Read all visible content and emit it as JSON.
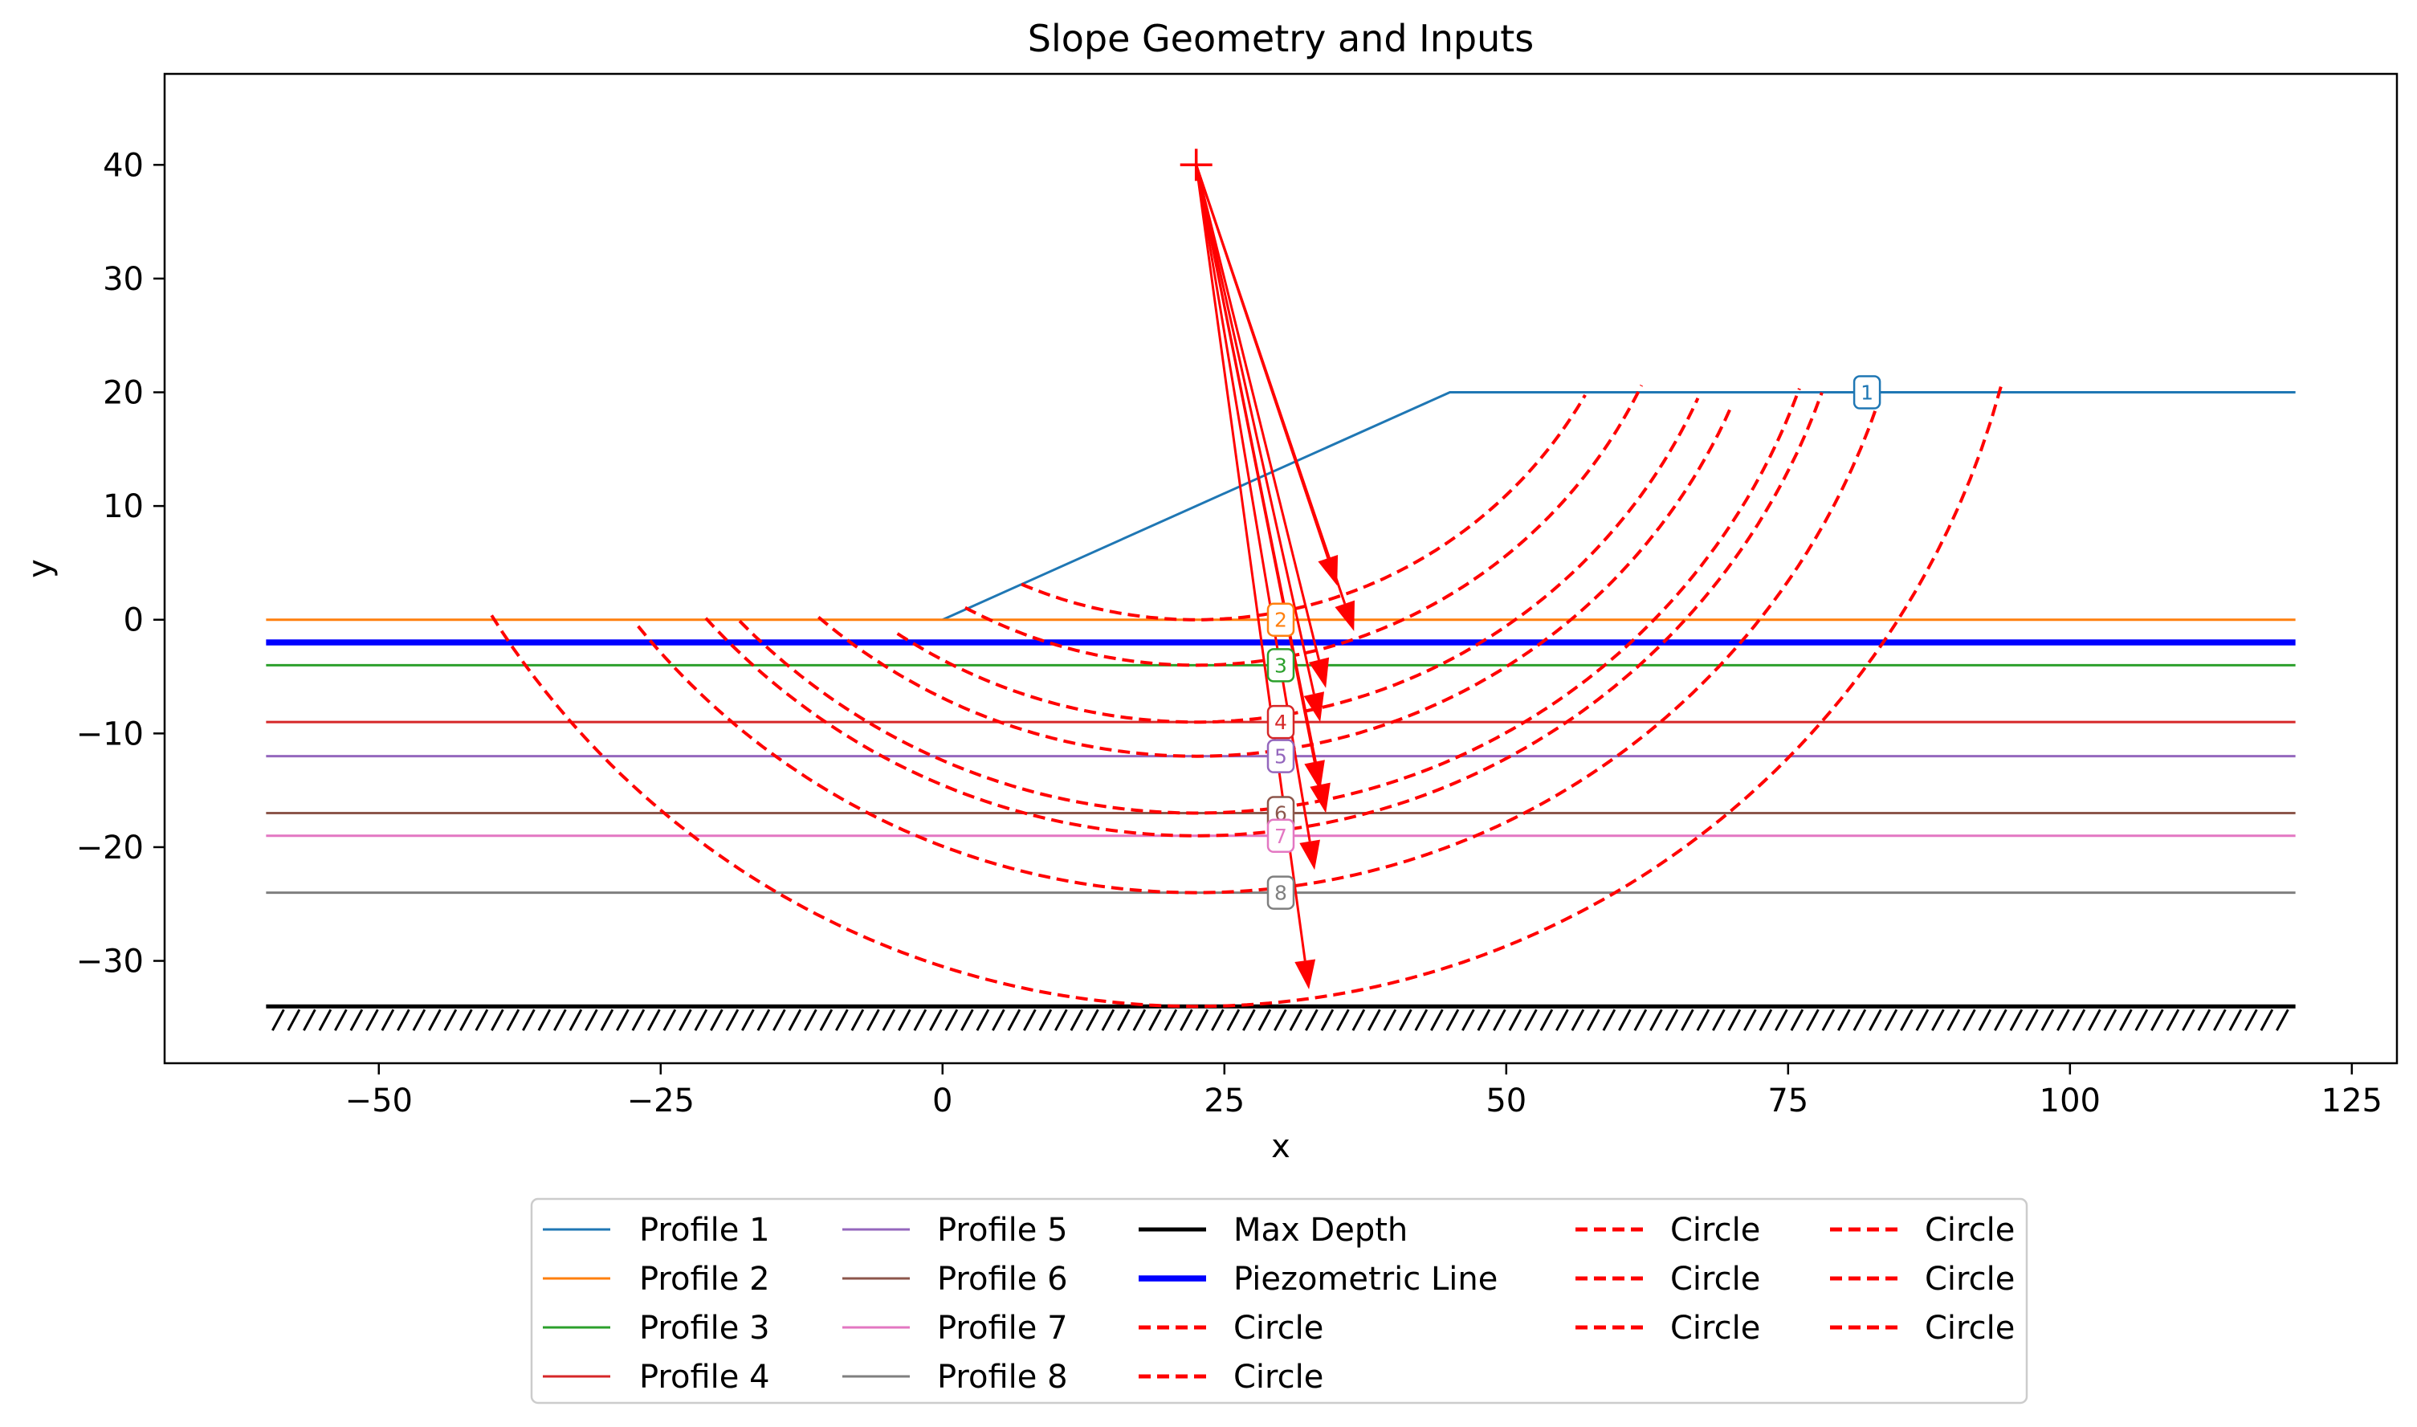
{
  "chart_data": {
    "type": "line",
    "title": "Slope Geometry and Inputs",
    "xlabel": "x",
    "ylabel": "y",
    "xlim": [
      -69,
      129
    ],
    "ylim": [
      -39,
      48
    ],
    "xticks": [
      -50,
      -25,
      0,
      25,
      50,
      75,
      100,
      125
    ],
    "yticks": [
      -30,
      -20,
      -10,
      0,
      10,
      20,
      30,
      40
    ],
    "tick_labels_x": [
      "−50",
      "−25",
      "0",
      "25",
      "50",
      "75",
      "100",
      "125"
    ],
    "tick_labels_y": [
      "−30",
      "−20",
      "−10",
      "0",
      "10",
      "20",
      "30",
      "40"
    ],
    "grid": false,
    "legend_placement": "below plot, 5 columns",
    "profiles": [
      {
        "name": "Profile 1",
        "color": "#1f77b4",
        "label_marker": "1",
        "marker_x": 82,
        "points": [
          [
            0,
            0
          ],
          [
            45,
            20
          ],
          [
            120,
            20
          ]
        ]
      },
      {
        "name": "Profile 2",
        "color": "#ff7f0e",
        "label_marker": "2",
        "marker_x": 30,
        "points": [
          [
            -60,
            0
          ],
          [
            120,
            0
          ]
        ]
      },
      {
        "name": "Profile 3",
        "color": "#2ca02c",
        "label_marker": "3",
        "marker_x": 30,
        "points": [
          [
            -60,
            -4
          ],
          [
            120,
            -4
          ]
        ]
      },
      {
        "name": "Profile 4",
        "color": "#d62728",
        "label_marker": "4",
        "marker_x": 30,
        "points": [
          [
            -60,
            -9
          ],
          [
            120,
            -9
          ]
        ]
      },
      {
        "name": "Profile 5",
        "color": "#9467bd",
        "label_marker": "5",
        "marker_x": 30,
        "points": [
          [
            -60,
            -12
          ],
          [
            120,
            -12
          ]
        ]
      },
      {
        "name": "Profile 6",
        "color": "#8c564b",
        "label_marker": "6",
        "marker_x": 30,
        "points": [
          [
            -60,
            -17
          ],
          [
            120,
            -17
          ]
        ]
      },
      {
        "name": "Profile 7",
        "color": "#e377c2",
        "label_marker": "7",
        "marker_x": 30,
        "points": [
          [
            -60,
            -19
          ],
          [
            120,
            -19
          ]
        ]
      },
      {
        "name": "Profile 8",
        "color": "#7f7f7f",
        "label_marker": "8",
        "marker_x": 30,
        "points": [
          [
            -60,
            -24
          ],
          [
            120,
            -24
          ]
        ]
      }
    ],
    "max_depth": {
      "name": "Max Depth",
      "color": "#000000",
      "y": -34,
      "x_range": [
        -60,
        120
      ]
    },
    "piezometric_line": {
      "name": "Piezometric Line",
      "color": "#0000ff",
      "y": -2,
      "x_range": [
        -60,
        120
      ]
    },
    "circle_center": {
      "x": 22.5,
      "y": 40,
      "color": "#ff0000"
    },
    "circles": [
      {
        "name": "Circle",
        "depth": 0,
        "x_left": 7,
        "x_right": 57
      },
      {
        "name": "Circle",
        "depth": -4,
        "x_left": 2,
        "x_right": 62
      },
      {
        "name": "Circle",
        "depth": -9,
        "x_left": -4,
        "x_right": 67
      },
      {
        "name": "Circle",
        "depth": -12,
        "x_left": -11,
        "x_right": 70
      },
      {
        "name": "Circle",
        "depth": -17,
        "x_left": -18,
        "x_right": 76
      },
      {
        "name": "Circle",
        "depth": -19,
        "x_left": -21,
        "x_right": 78
      },
      {
        "name": "Circle",
        "depth": -24,
        "x_left": -27,
        "x_right": 83
      },
      {
        "name": "Circle",
        "depth": -34,
        "x_left": -40,
        "x_right": 94
      }
    ],
    "circle_color": "#ff0000",
    "arrows": [
      {
        "x": 35,
        "y": 3
      },
      {
        "x": 36.5,
        "y": -1
      },
      {
        "x": 34,
        "y": -6
      },
      {
        "x": 33.5,
        "y": -9
      },
      {
        "x": 33.5,
        "y": -15
      },
      {
        "x": 34,
        "y": -17
      },
      {
        "x": 33,
        "y": -22
      },
      {
        "x": 32.5,
        "y": -32.5
      }
    ]
  }
}
